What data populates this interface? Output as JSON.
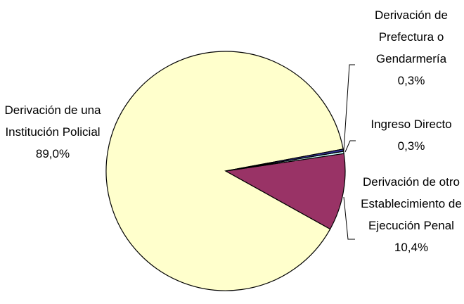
{
  "chart_data": {
    "type": "pie",
    "categories": [
      "Derivación de Prefectura o Gendarmería",
      "Ingreso Directo",
      "Derivación de otro Establecimiento de Ejecución Penal",
      "Derivación de una Institución Policial"
    ],
    "values": [
      0.3,
      0.3,
      10.4,
      89.0
    ],
    "value_labels": [
      "0,3%",
      "0,3%",
      "10,4%",
      "89,0%"
    ],
    "colors": [
      "#333399",
      "#ccffff",
      "#993366",
      "#ffffcc"
    ]
  }
}
